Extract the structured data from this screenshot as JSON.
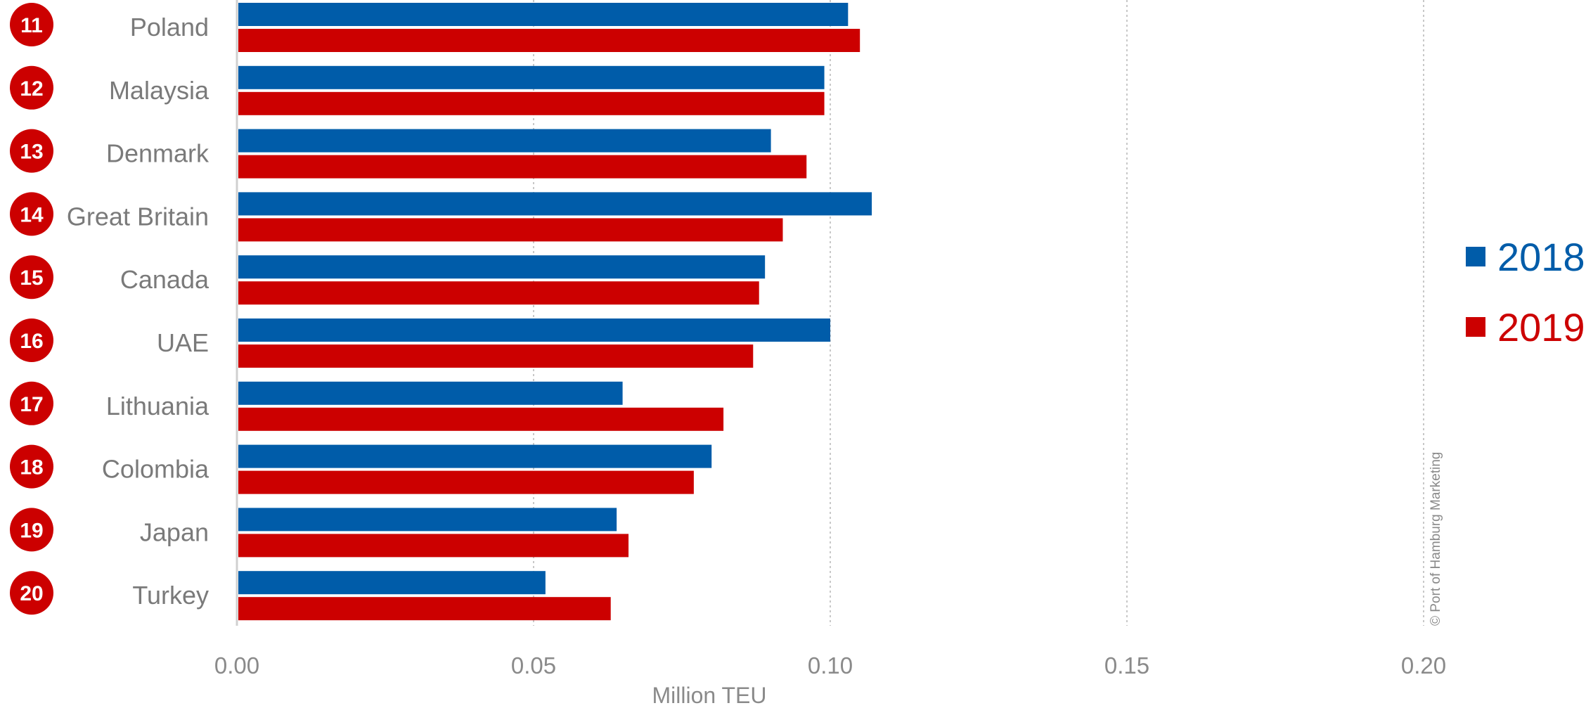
{
  "chart_data": {
    "type": "bar",
    "orientation": "horizontal",
    "ranks": [
      "11",
      "12",
      "13",
      "14",
      "15",
      "16",
      "17",
      "18",
      "19",
      "20"
    ],
    "categories": [
      "Poland",
      "Malaysia",
      "Denmark",
      "Great Britain",
      "Canada",
      "UAE",
      "Lithuania",
      "Colombia",
      "Japan",
      "Turkey"
    ],
    "series": [
      {
        "name": "2018",
        "color": "#005ca9",
        "values": [
          0.103,
          0.099,
          0.09,
          0.107,
          0.089,
          0.1,
          0.065,
          0.08,
          0.064,
          0.052
        ]
      },
      {
        "name": "2019",
        "color": "#cc0000",
        "values": [
          0.105,
          0.099,
          0.096,
          0.092,
          0.088,
          0.087,
          0.082,
          0.077,
          0.066,
          0.063
        ]
      }
    ],
    "xlim": [
      0,
      0.2
    ],
    "xticks": [
      "0.00",
      "0.05",
      "0.10",
      "0.15",
      "0.20"
    ],
    "xlabel": "Million TEU",
    "ylabel": "",
    "title": "",
    "grid": true,
    "legend_position": "right",
    "rank_badge_color": "#cc0000"
  },
  "credit": "© Port of Hamburg Marketing"
}
